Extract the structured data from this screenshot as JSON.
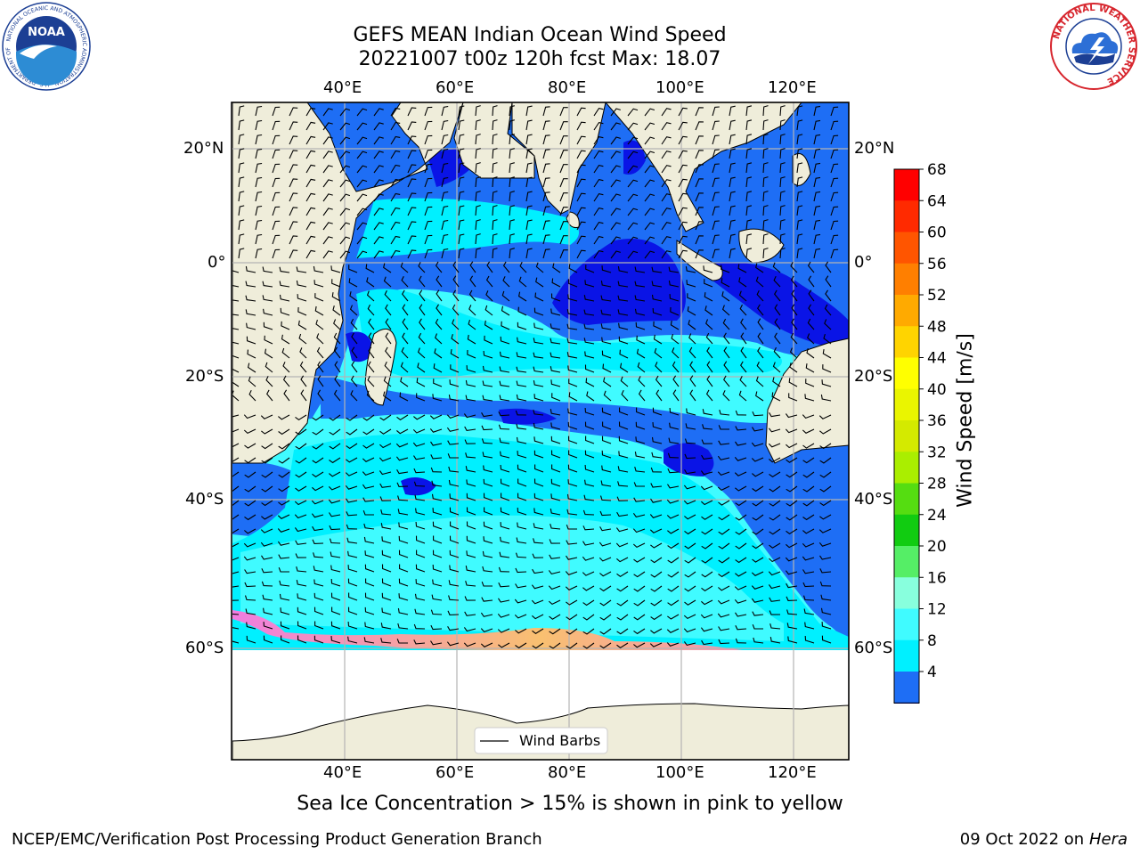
{
  "header": {
    "title_line1": "GEFS MEAN Indian Ocean Wind Speed",
    "title_line2": "20221007 t00z 120h fcst   Max: 18.07"
  },
  "logos": {
    "noaa_text": "NOAA",
    "noaa_ring_text": "NATIONAL OCEANIC AND ATMOSPHERIC ADMINISTRATION · U.S. DEPARTMENT OF COMMERCE",
    "nws_ring_text": "NATIONAL WEATHER SERVICE"
  },
  "map": {
    "lon_labels_top": [
      "40°E",
      "60°E",
      "80°E",
      "100°E",
      "120°E"
    ],
    "lon_labels_bottom": [
      "40°E",
      "60°E",
      "80°E",
      "100°E",
      "120°E"
    ],
    "lat_labels_left": [
      "20°N",
      "0°",
      "20°S",
      "40°S",
      "60°S"
    ],
    "lat_labels_right": [
      "20°N",
      "0°",
      "20°S",
      "40°S",
      "60°S"
    ],
    "legend_label": "Wind Barbs",
    "colors": {
      "land": "#efedda",
      "ws_4_8": "#1e6ef5",
      "ws_below_4": "#0a14e6",
      "ws_8_12": "#00f0ff",
      "ws_12_16": "#40fbff",
      "ice": "#f07ce0"
    }
  },
  "colorbar": {
    "label": "Wind Speed [m/s]",
    "ticks": [
      "68",
      "64",
      "60",
      "56",
      "52",
      "48",
      "44",
      "40",
      "36",
      "32",
      "28",
      "24",
      "20",
      "16",
      "12",
      "8",
      "4"
    ],
    "colors_top_to_bottom": [
      "#ff0000",
      "#ff2a00",
      "#ff5500",
      "#ff7f00",
      "#ffaa00",
      "#ffd400",
      "#ffff00",
      "#eaf500",
      "#d4ea00",
      "#aaee00",
      "#55dd11",
      "#11cc11",
      "#55ee66",
      "#88ffdd",
      "#40fbff",
      "#00f0ff",
      "#1e6ef5"
    ],
    "under_color": "#0a14e6"
  },
  "caption": "Sea Ice Concentration > 15% is shown in pink to yellow",
  "footer": {
    "left": "NCEP/EMC/Verification Post Processing Product Generation Branch",
    "date": "09 Oct 2022 on ",
    "machine": "Hera"
  }
}
